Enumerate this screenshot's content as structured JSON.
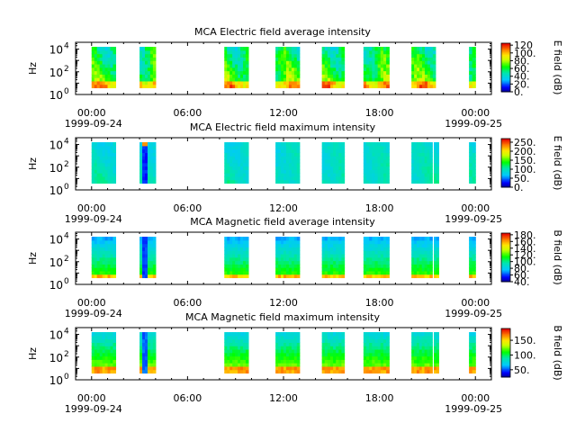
{
  "chart_data": [
    {
      "type": "heatmap",
      "title": "MCA  Electric field average intensity",
      "ylabel": "Hz",
      "colorbar_label": "E field (dB)",
      "colorbar_ticks": [
        "0.",
        "20.",
        "40.",
        "60.",
        "80.",
        "100.",
        "120"
      ],
      "colorbar_range": [
        0,
        125
      ],
      "y_ticks": [
        {
          "base": "10",
          "exp": "0"
        },
        {
          "base": "10",
          "exp": "2"
        },
        {
          "base": "10",
          "exp": "4"
        }
      ],
      "ylim_log10": [
        0,
        4.6
      ],
      "x_ticks": [
        "00:00",
        "06:00",
        "12:00",
        "18:00",
        "00:00"
      ],
      "x_dates": [
        "1999-09-24",
        "1999-09-25"
      ],
      "xlim_hours": [
        -1,
        25
      ],
      "data_range_log10": [
        0.6,
        4.2
      ],
      "coverage_hours": [
        [
          0.0,
          1.5
        ],
        [
          3.0,
          4.0
        ],
        [
          8.3,
          9.8
        ],
        [
          11.5,
          13.0
        ],
        [
          14.4,
          15.8
        ],
        [
          17.0,
          18.6
        ],
        [
          20.0,
          21.5
        ],
        [
          23.6,
          24.0
        ]
      ],
      "profile": "e_avg"
    },
    {
      "type": "heatmap",
      "title": "MCA  Electric field maximum intensity",
      "ylabel": "Hz",
      "colorbar_label": "E field (dB)",
      "colorbar_ticks": [
        "0.",
        "50.",
        "100.",
        "150.",
        "200.",
        "250."
      ],
      "colorbar_range": [
        0,
        270
      ],
      "y_ticks": [
        {
          "base": "10",
          "exp": "0"
        },
        {
          "base": "10",
          "exp": "2"
        },
        {
          "base": "10",
          "exp": "4"
        }
      ],
      "ylim_log10": [
        0,
        4.6
      ],
      "x_ticks": [
        "00:00",
        "06:00",
        "12:00",
        "18:00",
        "00:00"
      ],
      "x_dates": [
        "1999-09-24",
        "1999-09-25"
      ],
      "xlim_hours": [
        -1,
        25
      ],
      "data_range_log10": [
        0.6,
        4.2
      ],
      "coverage_hours": [
        [
          0.0,
          1.5
        ],
        [
          3.0,
          4.0
        ],
        [
          8.3,
          9.8
        ],
        [
          11.5,
          13.0
        ],
        [
          14.4,
          15.8
        ],
        [
          17.0,
          18.6
        ],
        [
          20.0,
          21.3
        ],
        [
          21.4,
          21.7
        ],
        [
          23.6,
          24.0
        ]
      ],
      "profile": "e_max"
    },
    {
      "type": "heatmap",
      "title": "MCA  Magnetic field average intensity",
      "ylabel": "Hz",
      "colorbar_label": "B field (dB)",
      "colorbar_ticks": [
        "40.",
        "60.",
        "80.",
        "100.",
        "120.",
        "140.",
        "160.",
        "180."
      ],
      "colorbar_range": [
        40,
        185
      ],
      "y_ticks": [
        {
          "base": "10",
          "exp": "0"
        },
        {
          "base": "10",
          "exp": "2"
        },
        {
          "base": "10",
          "exp": "4"
        }
      ],
      "ylim_log10": [
        0,
        4.6
      ],
      "x_ticks": [
        "00:00",
        "06:00",
        "12:00",
        "18:00",
        "00:00"
      ],
      "x_dates": [
        "1999-09-24",
        "1999-09-25"
      ],
      "xlim_hours": [
        -1,
        25
      ],
      "data_range_log10": [
        0.6,
        4.2
      ],
      "coverage_hours": [
        [
          0.0,
          1.5
        ],
        [
          3.0,
          4.0
        ],
        [
          8.3,
          9.8
        ],
        [
          11.5,
          13.0
        ],
        [
          14.4,
          15.8
        ],
        [
          17.0,
          18.6
        ],
        [
          20.0,
          21.3
        ],
        [
          21.4,
          21.7
        ],
        [
          23.6,
          24.0
        ]
      ],
      "profile": "b_avg"
    },
    {
      "type": "heatmap",
      "title": "MCA  Magnetic field maximum intensity",
      "ylabel": "Hz",
      "colorbar_label": "B field (dB)",
      "colorbar_ticks": [
        "50.",
        "100.",
        "150."
      ],
      "colorbar_range": [
        25,
        190
      ],
      "y_ticks": [
        {
          "base": "10",
          "exp": "0"
        },
        {
          "base": "10",
          "exp": "2"
        },
        {
          "base": "10",
          "exp": "4"
        }
      ],
      "ylim_log10": [
        0,
        4.6
      ],
      "x_ticks": [
        "00:00",
        "06:00",
        "12:00",
        "18:00",
        "00:00"
      ],
      "x_dates": [
        "1999-09-24",
        "1999-09-25"
      ],
      "xlim_hours": [
        -1,
        25
      ],
      "data_range_log10": [
        0.6,
        4.2
      ],
      "coverage_hours": [
        [
          0.0,
          1.5
        ],
        [
          3.0,
          4.0
        ],
        [
          8.3,
          9.8
        ],
        [
          11.5,
          13.0
        ],
        [
          14.4,
          15.8
        ],
        [
          17.0,
          18.6
        ],
        [
          20.0,
          21.3
        ],
        [
          21.4,
          21.7
        ],
        [
          23.6,
          24.0
        ]
      ],
      "profile": "b_max"
    }
  ]
}
